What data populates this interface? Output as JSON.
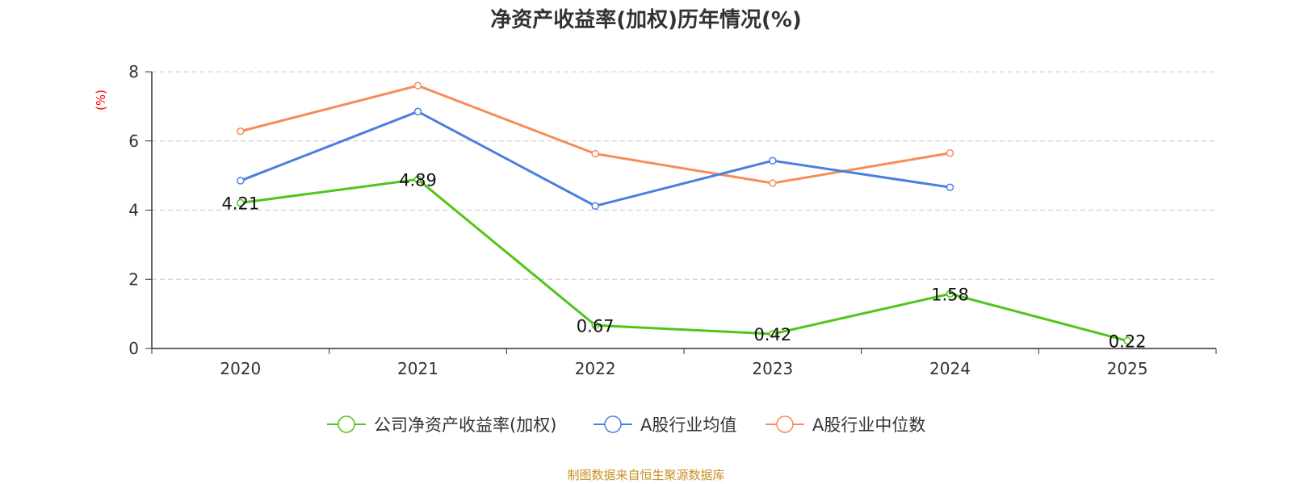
{
  "chart_data": {
    "type": "line",
    "title": "净资产收益率(加权)历年情况(%)",
    "ylabel": "(%)",
    "xlabel": "",
    "categories": [
      "2020",
      "2021",
      "2022",
      "2023",
      "2024",
      "2025"
    ],
    "ylim": [
      0,
      8
    ],
    "yticks": [
      0,
      2,
      4,
      6,
      8
    ],
    "grid": true,
    "legend_position": "bottom",
    "series": [
      {
        "name": "公司净资产收益率(加权)",
        "color": "#52c41a",
        "values": [
          4.21,
          4.89,
          0.67,
          0.42,
          1.58,
          0.22
        ],
        "data_labels": [
          "4.21",
          "4.89",
          "0.67",
          "0.42",
          "1.58",
          "0.22"
        ]
      },
      {
        "name": "A股行业均值",
        "color": "#4a7fe0",
        "values": [
          4.85,
          6.85,
          4.12,
          5.43,
          4.66,
          null
        ]
      },
      {
        "name": "A股行业中位数",
        "color": "#f78c5a",
        "values": [
          6.28,
          7.6,
          5.63,
          4.78,
          5.65,
          null
        ]
      }
    ],
    "source": "制图数据来自恒生聚源数据库"
  }
}
